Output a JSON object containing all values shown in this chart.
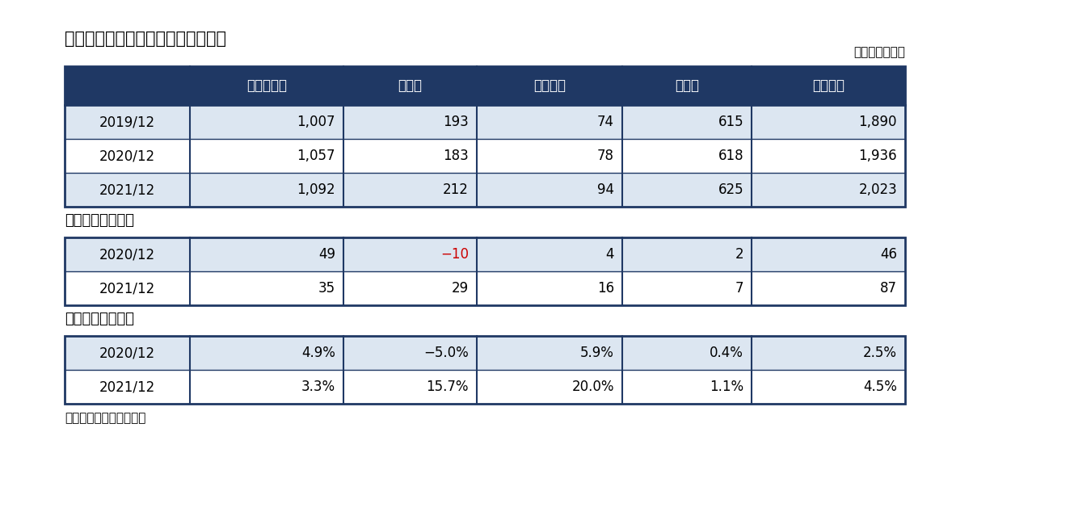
{
  "title": "図表１　家計の金融資産残高の推移",
  "unit_label": "（単位：兆円）",
  "source_label": "出所）日銀資金循環統計",
  "header_bg": "#1f3864",
  "header_text": "#ffffff",
  "row_bg_light": "#dce6f1",
  "row_bg_white": "#ffffff",
  "section_label_color": "#000000",
  "border_color": "#1f3864",
  "red_color": "#cc0000",
  "black_color": "#000000",
  "columns": [
    "",
    "現金・預金",
    "株式等",
    "投資信託",
    "その他",
    "資産合計"
  ],
  "section1_rows": [
    {
      "label": "2019/12",
      "values": [
        "1,007",
        "193",
        "74",
        "615",
        "1,890"
      ],
      "red_cols": []
    },
    {
      "label": "2020/12",
      "values": [
        "1,057",
        "183",
        "78",
        "618",
        "1,936"
      ],
      "red_cols": []
    },
    {
      "label": "2021/12",
      "values": [
        "1,092",
        "212",
        "94",
        "625",
        "2,023"
      ],
      "red_cols": []
    }
  ],
  "section2_label": "増加額（前年比）",
  "section2_rows": [
    {
      "label": "2020/12",
      "values": [
        "49",
        "−10",
        "4",
        "2",
        "46"
      ],
      "red_cols": [
        1
      ]
    },
    {
      "label": "2021/12",
      "values": [
        "35",
        "29",
        "16",
        "7",
        "87"
      ],
      "red_cols": []
    }
  ],
  "section3_label": "増加率（前年比）",
  "section3_rows": [
    {
      "label": "2020/12",
      "values": [
        "4.9%",
        "−5.0%",
        "5.9%",
        "0.4%",
        "2.5%"
      ],
      "red_cols": []
    },
    {
      "label": "2021/12",
      "values": [
        "3.3%",
        "15.7%",
        "20.0%",
        "1.1%",
        "4.5%"
      ],
      "red_cols": []
    }
  ],
  "fig_bg": "#ffffff"
}
